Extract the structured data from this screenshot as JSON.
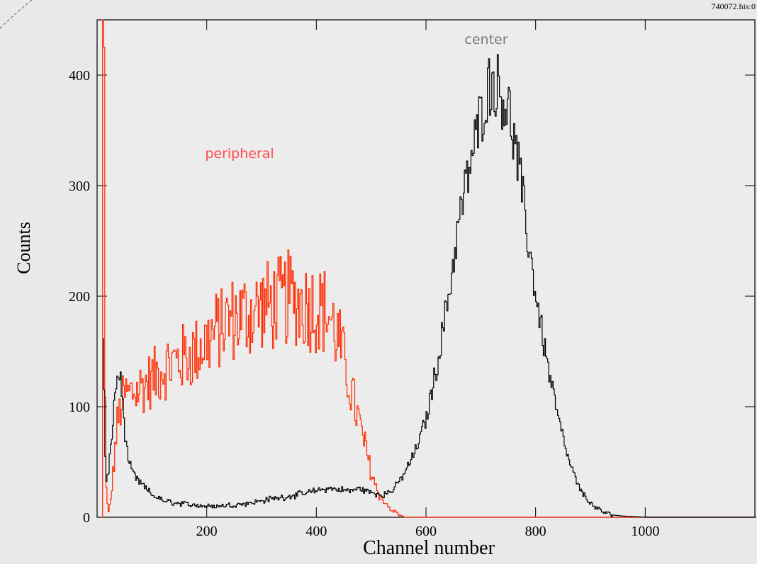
{
  "file_label": "740072.his:0",
  "colors": {
    "background": "#e9e9e9",
    "plot_background": "#ececec",
    "axis": "#000000",
    "center_series": "#000000",
    "peripheral_series": "#ff2a00",
    "center_label": "#7a7a7a",
    "peripheral_label": "#ff4a4a"
  },
  "chart_data": {
    "type": "line",
    "title": "",
    "xlabel": "Channel number",
    "ylabel": "Counts",
    "xlim": [
      0,
      1200
    ],
    "ylim": [
      0,
      450
    ],
    "x_ticks": [
      200,
      400,
      600,
      800,
      1000
    ],
    "y_ticks": [
      0,
      100,
      200,
      300,
      400
    ],
    "grid": false,
    "legend": "none",
    "annotations": [
      {
        "text": "center",
        "series": "center"
      },
      {
        "text": "peripheral",
        "series": "peripheral"
      }
    ],
    "series": [
      {
        "name": "center",
        "color": "#000000",
        "x": [
          10,
          15,
          20,
          25,
          30,
          35,
          40,
          45,
          50,
          55,
          60,
          65,
          70,
          80,
          90,
          100,
          120,
          140,
          160,
          180,
          200,
          220,
          240,
          260,
          280,
          300,
          320,
          340,
          360,
          380,
          400,
          420,
          440,
          460,
          480,
          500,
          520,
          540,
          560,
          580,
          600,
          620,
          640,
          660,
          680,
          700,
          710,
          720,
          730,
          740,
          750,
          760,
          770,
          780,
          800,
          820,
          840,
          860,
          880,
          900,
          920,
          940,
          960,
          1000,
          1100,
          1200
        ],
        "y": [
          160,
          30,
          40,
          70,
          100,
          125,
          130,
          110,
          75,
          55,
          45,
          40,
          35,
          30,
          25,
          20,
          15,
          13,
          12,
          11,
          10,
          10,
          11,
          12,
          13,
          15,
          17,
          18,
          20,
          22,
          24,
          26,
          25,
          24,
          26,
          22,
          20,
          25,
          40,
          60,
          90,
          140,
          200,
          270,
          320,
          365,
          385,
          395,
          390,
          380,
          370,
          340,
          310,
          270,
          200,
          140,
          90,
          50,
          25,
          12,
          5,
          2,
          1,
          0,
          0,
          0
        ]
      },
      {
        "name": "peripheral",
        "color": "#ff2a00",
        "x": [
          8,
          10,
          12,
          14,
          16,
          18,
          20,
          25,
          30,
          35,
          40,
          45,
          50,
          60,
          70,
          80,
          100,
          120,
          140,
          160,
          180,
          200,
          220,
          240,
          260,
          280,
          300,
          320,
          340,
          350,
          360,
          380,
          400,
          420,
          440,
          460,
          470,
          480,
          490,
          500,
          510,
          520,
          530,
          540,
          560,
          600,
          700,
          800,
          900,
          1000,
          1200
        ],
        "y": [
          0,
          450,
          400,
          100,
          30,
          10,
          5,
          20,
          50,
          80,
          95,
          105,
          110,
          112,
          115,
          118,
          125,
          135,
          140,
          145,
          150,
          160,
          170,
          178,
          182,
          185,
          190,
          192,
          195,
          200,
          195,
          193,
          190,
          185,
          160,
          120,
          100,
          80,
          60,
          40,
          25,
          15,
          10,
          5,
          0,
          0,
          0,
          0,
          0,
          0,
          0
        ]
      }
    ]
  }
}
